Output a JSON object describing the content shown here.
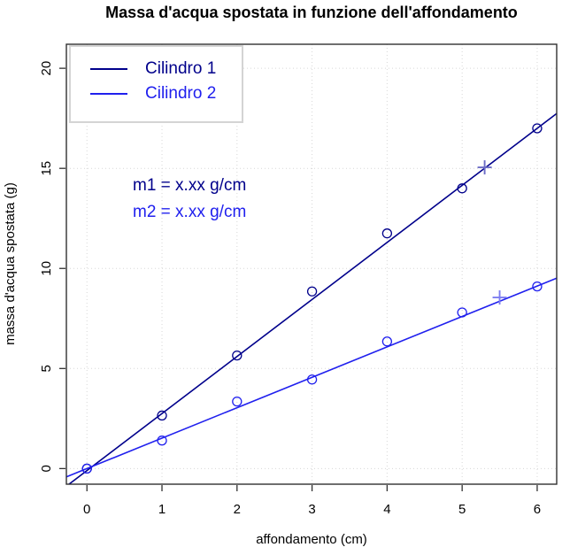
{
  "chart_data": {
    "type": "scatter",
    "title": "Massa d'acqua spostata in funzione dell'affondamento",
    "xlabel": "affondamento (cm)",
    "ylabel": "massa d'acqua spostata (g)",
    "x_ticks": [
      0,
      1,
      2,
      3,
      4,
      5,
      6
    ],
    "y_ticks": [
      0,
      5,
      10,
      15,
      20
    ],
    "xlim": [
      -0.274,
      6.26
    ],
    "ylim": [
      -0.78,
      21.2
    ],
    "grid": "dotted",
    "legend_position": "top-left",
    "colors": {
      "grid": "#d7d7d7",
      "box": "#303030",
      "text": "#000000",
      "background": "#ffffff",
      "legend_border": "#d4d4d4"
    },
    "series": [
      {
        "name": "Cilindro 1",
        "color": "#00008B",
        "marker": "circle",
        "x": [
          0,
          1,
          2,
          3,
          4,
          5,
          6
        ],
        "y": [
          0,
          2.65,
          5.65,
          8.85,
          11.75,
          14.0,
          17.0
        ],
        "fit_line": {
          "slope": 2.85,
          "intercept": -0.1
        },
        "check_point": {
          "x": 5.3,
          "y": 15.05,
          "marker": "plus",
          "color": "#6d6dc6"
        }
      },
      {
        "name": "Cilindro 2",
        "color": "#2020EE",
        "marker": "circle",
        "x": [
          0,
          1,
          2,
          3,
          4,
          5,
          6
        ],
        "y": [
          0,
          1.4,
          3.35,
          4.45,
          6.35,
          7.8,
          9.1
        ],
        "fit_line": {
          "slope": 1.52,
          "intercept": 0.0
        },
        "check_point": {
          "x": 5.5,
          "y": 8.55,
          "marker": "plus",
          "color": "#7d7df0"
        }
      }
    ],
    "annotations": [
      {
        "text": "m1 = x.xx g/cm",
        "color": "#00008B"
      },
      {
        "text": "m2 = x.xx g/cm",
        "color": "#2020EE"
      }
    ]
  }
}
